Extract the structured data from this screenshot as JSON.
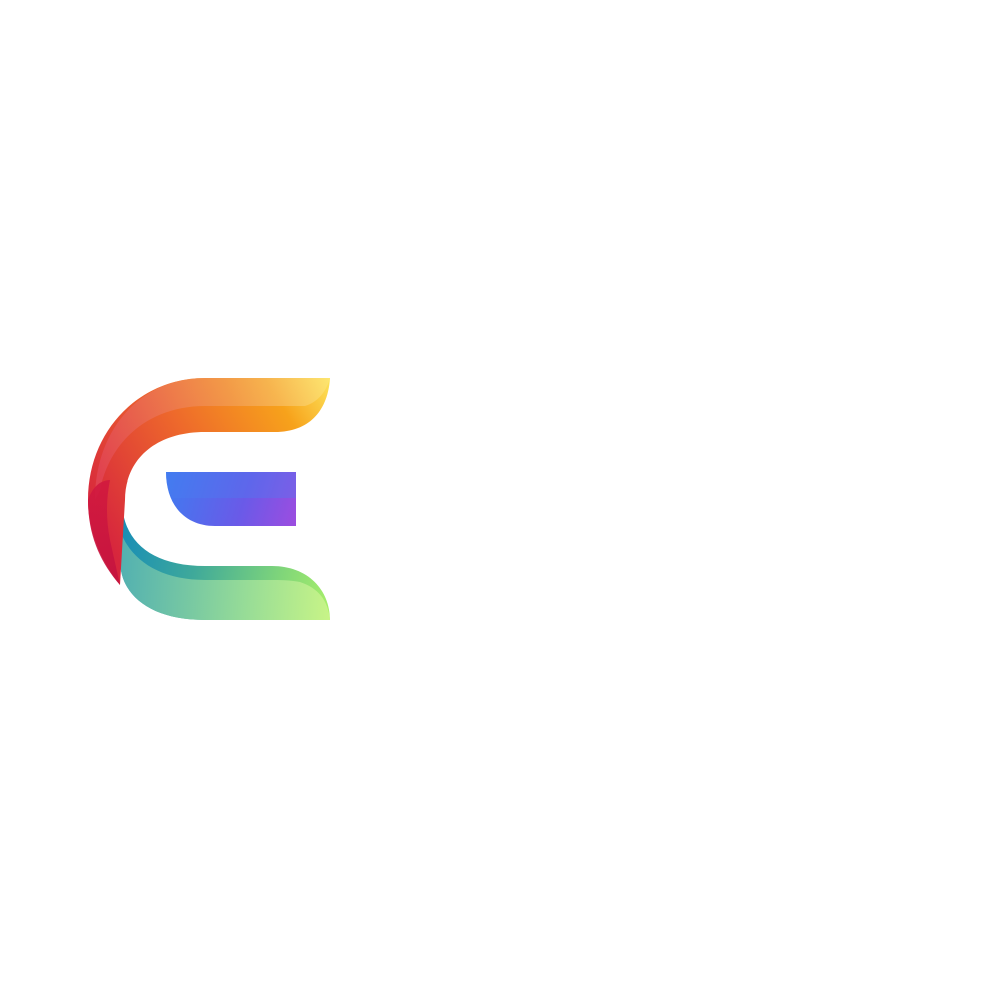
{
  "background_color": "#ffffff",
  "logo": {
    "icon": "letter-e-gradient-logo-icon",
    "colors": {
      "top_stroke": [
        "#d7263d",
        "#ee6a2b",
        "#f7a21b",
        "#fde35a"
      ],
      "middle_bar": [
        "#3f7bf0",
        "#7b56e8",
        "#9b4de0"
      ],
      "bottom_stroke": [
        "#1a8fb5",
        "#4cb6a0",
        "#8fdc7f",
        "#c5f27c"
      ],
      "left_shadow": "#c2123f"
    }
  }
}
